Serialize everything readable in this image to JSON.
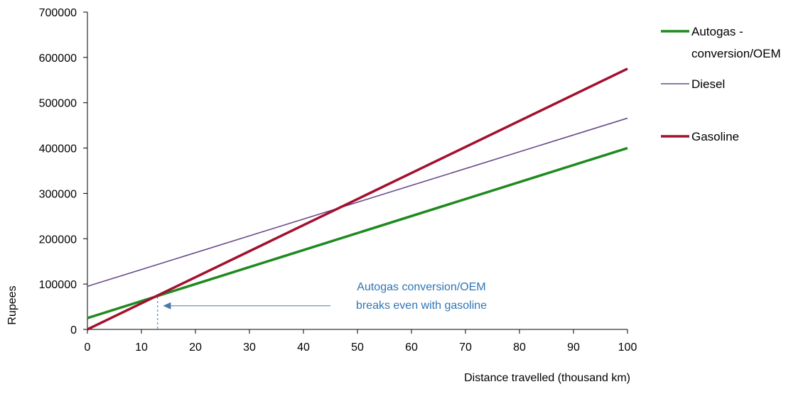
{
  "chart_data": {
    "type": "line",
    "title": "",
    "xlabel": "Distance travelled (thousand km)",
    "ylabel": "Rupees",
    "xlim": [
      0,
      100
    ],
    "ylim": [
      0,
      700000
    ],
    "x_ticks": [
      0,
      10,
      20,
      30,
      40,
      50,
      60,
      70,
      80,
      90,
      100
    ],
    "y_ticks": [
      0,
      100000,
      200000,
      300000,
      400000,
      500000,
      600000,
      700000
    ],
    "x_tick_labels": [
      "0",
      "10",
      "20",
      "30",
      "40",
      "50",
      "60",
      "70",
      "80",
      "90",
      "100"
    ],
    "y_tick_labels": [
      "0",
      "100000",
      "200000",
      "300000",
      "400000",
      "500000",
      "600000",
      "700000"
    ],
    "grid": false,
    "legend_position": "right",
    "series": [
      {
        "name": "Autogas - conversion/OEM",
        "legend_lines": [
          "Autogas -",
          "conversion/OEM"
        ],
        "color": "#1e8a1e",
        "x": [
          0,
          100
        ],
        "y": [
          25000,
          400000
        ]
      },
      {
        "name": "Diesel",
        "legend_lines": [
          "Diesel"
        ],
        "color": "#6a4a8a",
        "x": [
          0,
          100
        ],
        "y": [
          95000,
          466000
        ]
      },
      {
        "name": "Gasoline",
        "legend_lines": [
          "Gasoline"
        ],
        "color": "#a3102e",
        "x": [
          0,
          100
        ],
        "y": [
          0,
          575000
        ]
      }
    ],
    "annotations": [
      {
        "text_lines": [
          "Autogas conversion/OEM",
          "breaks even with gasoline"
        ],
        "color": "#2e75b6",
        "arrow_from_x": 45,
        "arrow_to_x": 14,
        "arrow_y": 52000,
        "marker_x": 13
      }
    ]
  }
}
